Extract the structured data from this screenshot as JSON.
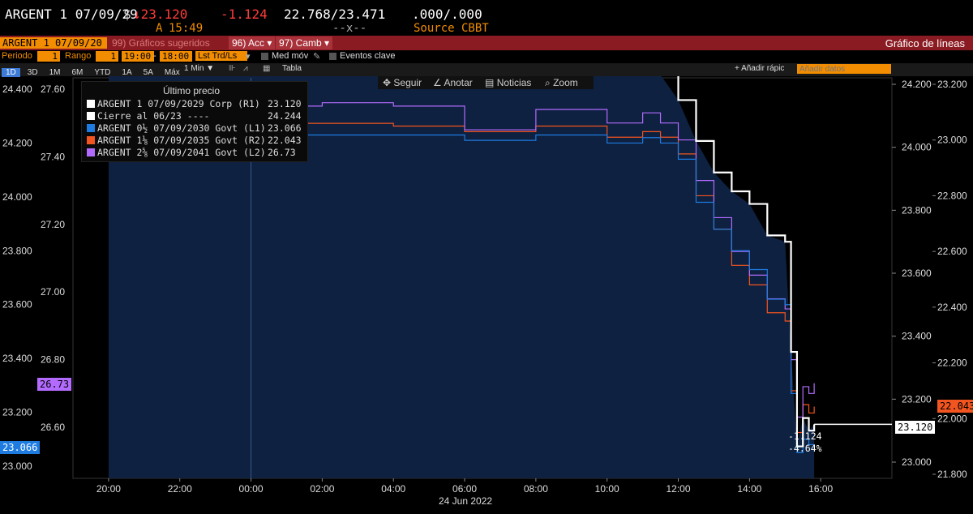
{
  "header": {
    "ticker": "ARGENT 1 07/09/29",
    "currency": "$",
    "last_price": "↓23.120",
    "change": "-1.124",
    "bid_ask": "22.768/23.471",
    "volume": ".000/.000",
    "time_prefix": "A",
    "time": "15:49",
    "spread_line": "--x--",
    "source": "Source CBBT"
  },
  "toolbar1": {
    "security": "ARGENT 1 07/09/20",
    "suggested": "99) Gráficos sugeridos",
    "actions": "96) Acc",
    "edit": "97) Camb",
    "title": "Gráfico de líneas"
  },
  "toolbar2": {
    "period_label": "Periodo",
    "period_value": "1",
    "range_label": "Rango",
    "range_value": "1",
    "range_start": "19:00",
    "range_end": "18:00",
    "study": "Lst Trd/Ls",
    "moving_avg": "Med móv",
    "events": "Eventos clave"
  },
  "toolbar3": {
    "ranges": [
      "1D",
      "3D",
      "1M",
      "6M",
      "YTD",
      "1A",
      "5A",
      "Máx"
    ],
    "interval": "1 Min",
    "table": "Tabla",
    "quick_add": "+ Añadir rápic",
    "add_data_placeholder": "Añadir datos"
  },
  "chart_tools": {
    "follow": "Seguir",
    "annotate": "Anotar",
    "news": "Noticias",
    "zoom": "Zoom"
  },
  "legend": {
    "title": "Último precio",
    "rows": [
      {
        "label": "ARGENT 1 07/09/2029 Corp  (R1)",
        "value": "23.120",
        "color": "#ffffff"
      },
      {
        "label": "Cierre al 06/23 ----",
        "value": "24.244",
        "color": "#ffffff"
      },
      {
        "label": "ARGENT 0½ 07/09/2030 Govt  (L1)",
        "value": "23.066",
        "color": "#1e7be0"
      },
      {
        "label": "ARGENT 1⅛ 07/09/2035 Govt  (R2)",
        "value": "22.043",
        "color": "#f2551f"
      },
      {
        "label": "ARGENT 2⅝ 07/09/2041 Govt  (L2)",
        "value": "26.73",
        "color": "#b36bff"
      }
    ]
  },
  "annotations": {
    "change": "-1.124",
    "pct_change": "-4.64%"
  },
  "badges": {
    "r1": "23.120",
    "r2": "22.043",
    "l1": "23.066",
    "l2": "26.73"
  },
  "colors": {
    "white_series": "#ffffff",
    "blue_series": "#1e7be0",
    "orange_series": "#f2551f",
    "purple_series": "#b36bff",
    "area_fill": "#0e2140",
    "toolbar_red": "#8b1b22",
    "accent_orange": "#f28c00"
  },
  "chart_data": {
    "type": "line",
    "date_label": "24 Jun 2022",
    "x_ticks": [
      "20:00",
      "22:00",
      "00:00",
      "02:00",
      "04:00",
      "06:00",
      "08:00",
      "10:00",
      "12:00",
      "14:00",
      "16:00"
    ],
    "y_left_outer_ticks": [
      "24.400",
      "24.200",
      "24.000",
      "23.800",
      "23.600",
      "23.400",
      "23.200",
      "23.000"
    ],
    "y_left_inner_ticks": [
      "27.60",
      "27.40",
      "27.20",
      "27.00",
      "26.80",
      "26.60"
    ],
    "y_right_inner_ticks": [
      "24.200",
      "24.000",
      "23.800",
      "23.600",
      "23.400",
      "23.200",
      "23.000"
    ],
    "y_right_outer_ticks": [
      "23.200",
      "23.000",
      "22.800",
      "22.600",
      "22.400",
      "22.200",
      "22.000",
      "21.800"
    ],
    "previous_close": 24.244,
    "x": [
      "20:00",
      "22:00",
      "00:00",
      "02:00",
      "04:00",
      "06:00",
      "08:00",
      "10:00",
      "11:00",
      "11:30",
      "12:00",
      "12:30",
      "13:00",
      "13:30",
      "14:00",
      "14:30",
      "15:00",
      "15:10",
      "15:20",
      "15:30",
      "15:40",
      "15:49"
    ],
    "series": [
      {
        "name": "ARGENT 1 07/09/2029 Corp (R1)",
        "axis": "right_inner",
        "values": [
          24.24,
          24.24,
          24.24,
          24.23,
          24.23,
          24.22,
          24.25,
          24.24,
          24.25,
          24.23,
          24.15,
          24.02,
          23.92,
          23.86,
          23.82,
          23.72,
          23.7,
          23.35,
          23.05,
          23.14,
          23.1,
          23.12
        ]
      },
      {
        "name": "ARGENT 0½ 07/09/2030 Govt (L1)",
        "axis": "left_outer",
        "values": [
          24.23,
          24.23,
          24.23,
          24.23,
          24.23,
          24.21,
          24.23,
          24.2,
          24.22,
          24.2,
          24.14,
          23.98,
          23.88,
          23.8,
          23.73,
          23.62,
          23.6,
          23.27,
          23.05,
          23.1,
          23.08,
          23.066
        ]
      },
      {
        "name": "ARGENT 1⅛ 07/09/2035 Govt (R2)",
        "axis": "right_outer",
        "values": [
          23.06,
          23.06,
          23.06,
          23.06,
          23.05,
          23.03,
          23.05,
          23.01,
          23.03,
          23.01,
          22.95,
          22.8,
          22.68,
          22.55,
          22.48,
          22.38,
          22.35,
          22.1,
          21.95,
          22.05,
          22.02,
          22.043
        ]
      },
      {
        "name": "ARGENT 2⅝ 07/09/2041 Govt (L2)",
        "axis": "left_inner",
        "values": [
          27.55,
          27.55,
          27.55,
          27.56,
          27.55,
          27.48,
          27.54,
          27.5,
          27.53,
          27.5,
          27.45,
          27.33,
          27.22,
          27.12,
          27.05,
          26.98,
          26.95,
          26.8,
          26.63,
          26.72,
          26.7,
          26.73
        ]
      }
    ]
  }
}
